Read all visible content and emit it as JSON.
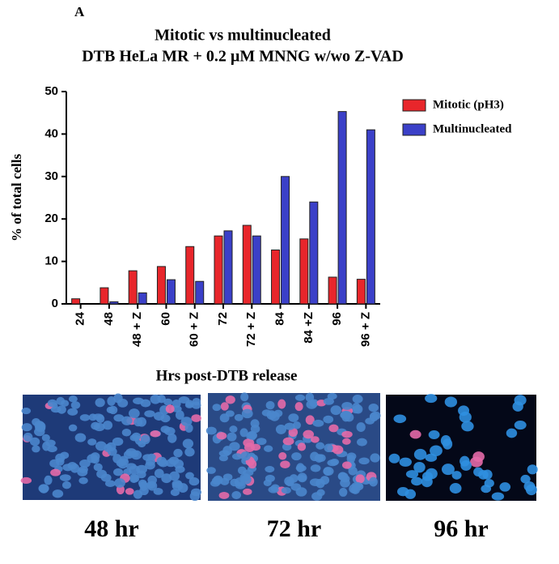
{
  "panel_label": "A",
  "chart_data": {
    "type": "bar",
    "title": "Mitotic vs multinucleated",
    "subtitle": "DTB HeLa MR + 0.2 µM MNNG w/wo Z-VAD",
    "x_label": "Hrs post-DTB release",
    "y_label": "% of total cells",
    "categories": [
      "24",
      "48",
      "48 + Z",
      "60",
      "60 + Z",
      "72",
      "72 + Z",
      "84",
      "84 +Z",
      "96",
      "96 + Z"
    ],
    "series": [
      {
        "name": "Mitotic (pH3)",
        "color": "#e8262b",
        "values": [
          1.2,
          3.8,
          7.8,
          8.8,
          13.5,
          16,
          18.5,
          12.7,
          15.3,
          6.3,
          5.8
        ]
      },
      {
        "name": "Multinucleated",
        "color": "#3b40c8",
        "values": [
          0,
          0.5,
          2.6,
          5.7,
          5.3,
          17.2,
          16,
          30,
          24,
          45.3,
          41
        ]
      }
    ],
    "ylim": [
      0,
      50
    ],
    "yticks": [
      0,
      10,
      20,
      30,
      40,
      50
    ],
    "legend": "upper right"
  },
  "images": [
    {
      "caption": "48 hr"
    },
    {
      "caption": "72 hr"
    },
    {
      "caption": "96 hr"
    }
  ]
}
